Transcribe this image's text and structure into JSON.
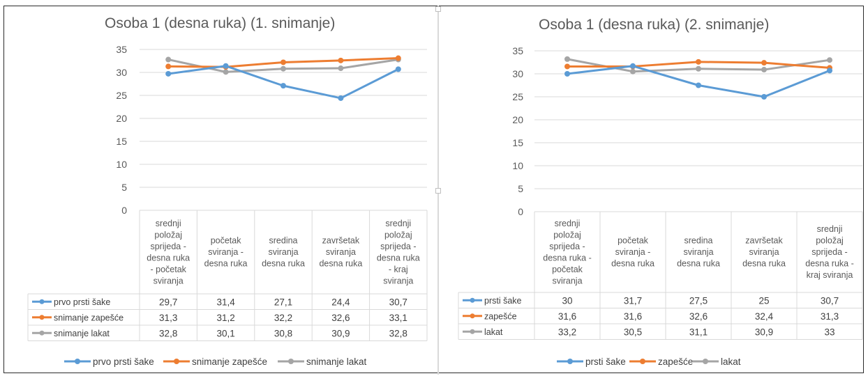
{
  "chart_data": [
    {
      "type": "line",
      "title": "Osoba 1 (desna ruka) (1. snimanje)",
      "categories": [
        "srednji položaj sprijeda - desna ruka - početak sviranja",
        "početak sviranja - desna ruka",
        "sredina sviranja desna ruka",
        "završetak sviranja desna ruka",
        "srednji položaj sprijeda - desna ruka - kraj sviranja"
      ],
      "category_lines": [
        [
          "srednji",
          "položaj",
          "sprijeda -",
          "desna ruka",
          "- početak",
          "sviranja"
        ],
        [
          "početak",
          "sviranja -",
          "desna ruka"
        ],
        [
          "sredina",
          "sviranja",
          "desna ruka"
        ],
        [
          "završetak",
          "sviranja",
          "desna ruka"
        ],
        [
          "srednji",
          "položaj",
          "sprijeda -",
          "desna ruka",
          "- kraj",
          "sviranja"
        ]
      ],
      "series": [
        {
          "name": "prvo prsti šake",
          "color": "#5B9BD5",
          "values": [
            29.7,
            31.4,
            27.1,
            24.4,
            30.7
          ],
          "labels": [
            "29,7",
            "31,4",
            "27,1",
            "24,4",
            "30,7"
          ]
        },
        {
          "name": "snimanje zapešće",
          "color": "#ED7D31",
          "values": [
            31.3,
            31.2,
            32.2,
            32.6,
            33.1
          ],
          "labels": [
            "31,3",
            "31,2",
            "32,2",
            "32,6",
            "33,1"
          ]
        },
        {
          "name": "snimanje lakat",
          "color": "#A5A5A5",
          "values": [
            32.8,
            30.1,
            30.8,
            30.9,
            32.8
          ],
          "labels": [
            "32,8",
            "30,1",
            "30,8",
            "30,9",
            "32,8"
          ]
        }
      ],
      "ylim": [
        0,
        35
      ],
      "yticks": [
        0,
        5,
        10,
        15,
        20,
        25,
        30,
        35
      ],
      "grid": true,
      "legend": "bottom",
      "data_table": true
    },
    {
      "type": "line",
      "title": "Osoba 1 (desna ruka) (2. snimanje)",
      "categories": [
        "srednji položaj sprijeda - desna ruka - početak sviranja",
        "početak sviranja - desna ruka",
        "sredina sviranja desna ruka",
        "završetak sviranja desna ruka",
        "srednji položaj sprijeda - desna ruka - kraj sviranja"
      ],
      "category_lines": [
        [
          "srednji",
          "položaj",
          "sprijeda -",
          "desna ruka -",
          "početak",
          "sviranja"
        ],
        [
          "početak",
          "sviranja -",
          "desna ruka"
        ],
        [
          "sredina",
          "sviranja",
          "desna ruka"
        ],
        [
          "završetak",
          "sviranja",
          "desna ruka"
        ],
        [
          "srednji",
          "položaj",
          "sprijeda -",
          "desna ruka -",
          "kraj sviranja"
        ]
      ],
      "series": [
        {
          "name": "prsti šake",
          "color": "#5B9BD5",
          "values": [
            30,
            31.7,
            27.5,
            25,
            30.7
          ],
          "labels": [
            "30",
            "31,7",
            "27,5",
            "25",
            "30,7"
          ]
        },
        {
          "name": "zapešće",
          "color": "#ED7D31",
          "values": [
            31.6,
            31.6,
            32.6,
            32.4,
            31.3
          ],
          "labels": [
            "31,6",
            "31,6",
            "32,6",
            "32,4",
            "31,3"
          ]
        },
        {
          "name": "lakat",
          "color": "#A5A5A5",
          "values": [
            33.2,
            30.5,
            31.1,
            30.9,
            33
          ],
          "labels": [
            "33,2",
            "30,5",
            "31,1",
            "30,9",
            "33"
          ]
        }
      ],
      "ylim": [
        0,
        35
      ],
      "yticks": [
        0,
        5,
        10,
        15,
        20,
        25,
        30,
        35
      ],
      "grid": true,
      "legend": "bottom",
      "data_table": true
    }
  ]
}
